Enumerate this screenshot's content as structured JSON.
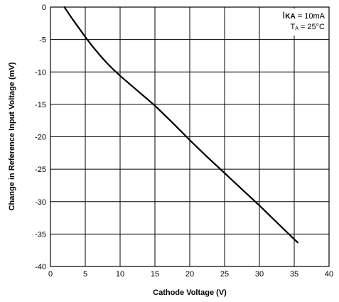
{
  "chart_data": {
    "type": "line",
    "title": "",
    "xlabel": "Cathode Voltage (V)",
    "ylabel": "Change in Reference Input Voltage (mV)",
    "xlim": [
      0,
      40
    ],
    "ylim": [
      -40,
      0
    ],
    "x_ticks": [
      0,
      5,
      10,
      15,
      20,
      25,
      30,
      35,
      40
    ],
    "y_ticks": [
      0,
      -5,
      -10,
      -15,
      -20,
      -25,
      -30,
      -35,
      -40
    ],
    "x_tick_labels": [
      "0",
      "5",
      "10",
      "15",
      "20",
      "25",
      "30",
      "35",
      "40"
    ],
    "y_tick_labels": [
      "0",
      "-5",
      "-10",
      "-15",
      "-20",
      "-25",
      "-30",
      "-35",
      "-40"
    ],
    "grid": true,
    "x_grid_step": 5,
    "y_grid_step": 5,
    "annotation": {
      "line1_main": "I",
      "line1_sub": "KA",
      "line1_rest": " = 10mA",
      "line2_main": "T",
      "line2_sub": "A",
      "line2_rest": " = 25°C",
      "placement": "top-right"
    },
    "colors": {
      "line": "#000000",
      "grid": "#000000",
      "background": "#ffffff"
    },
    "series": [
      {
        "x": [
          2.0,
          3.0,
          4.0,
          5.0,
          6.0,
          7.0,
          8.0,
          9.0,
          10.0,
          12.5,
          15.0,
          17.5,
          20.0,
          22.5,
          25.0,
          27.5,
          30.0,
          32.5,
          35.0,
          35.5
        ],
        "values": [
          0.0,
          -1.6,
          -3.1,
          -4.6,
          -6.0,
          -7.3,
          -8.5,
          -9.6,
          -10.6,
          -12.9,
          -15.2,
          -17.8,
          -20.5,
          -23.1,
          -25.6,
          -28.1,
          -30.6,
          -33.2,
          -35.8,
          -36.3
        ]
      }
    ]
  }
}
